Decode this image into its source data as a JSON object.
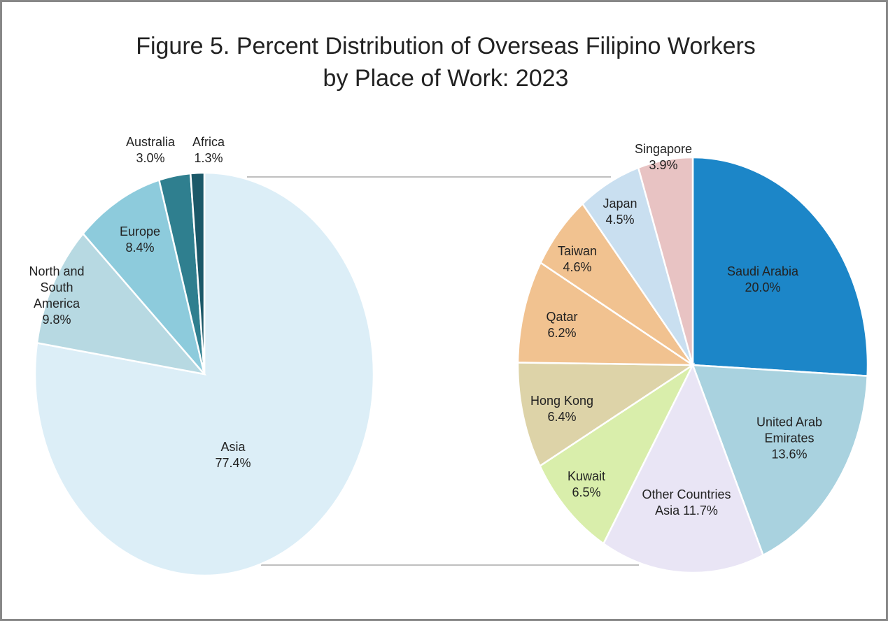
{
  "title": "Figure 5. Percent Distribution of Overseas Filipino Workers by Place of Work: 2023",
  "chart_data": [
    {
      "type": "pie",
      "categories": [
        "Asia",
        "North and South America",
        "Europe",
        "Australia",
        "Africa"
      ],
      "values": [
        77.4,
        9.8,
        8.4,
        3.0,
        1.3
      ],
      "value_labels": [
        "77.4%",
        "9.8%",
        "8.4%",
        "3.0%",
        "1.3%"
      ],
      "colors": [
        "#dceef7",
        "#b7d9e2",
        "#8dcbdc",
        "#2f7f8f",
        "#1b5868"
      ]
    },
    {
      "type": "pie",
      "categories": [
        "Saudi Arabia",
        "United Arab Emirates",
        "Other Countries Asia",
        "Kuwait",
        "Hong Kong",
        "Qatar",
        "Taiwan",
        "Japan",
        "Singapore"
      ],
      "values": [
        20.0,
        13.6,
        11.7,
        6.5,
        6.4,
        6.2,
        4.6,
        4.5,
        3.9
      ],
      "value_labels": [
        "20.0%",
        "13.6%",
        "11.7%",
        "6.5%",
        "6.4%",
        "6.2%",
        "4.6%",
        "4.5%",
        "3.9%"
      ],
      "colors": [
        "#1c86c8",
        "#a9d2df",
        "#e9e5f5",
        "#d9eeab",
        "#ddd3a8",
        "#f1c290",
        "#f1c290",
        "#c9dff0",
        "#e8c3c3"
      ]
    }
  ]
}
